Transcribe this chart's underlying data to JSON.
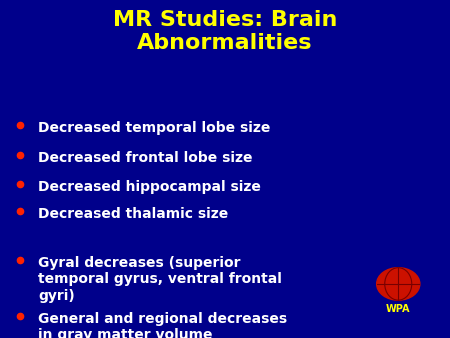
{
  "title_line1": "MR Studies: Brain",
  "title_line2": "Abnormalities",
  "title_color": "#FFFF00",
  "background_color": "#00008B",
  "bullet_color": "#FF2200",
  "text_color": "#FFFFFF",
  "bullet_items": [
    "Decreased temporal lobe size",
    "Decreased frontal lobe size",
    "Decreased hippocampal size",
    "Decreased thalamic size",
    "Gyral decreases (superior\ntemporal gyrus, ventral frontal\ngyri)",
    "General and regional decreases\nin gray matter volume"
  ],
  "wpa_text": "WPA",
  "wpa_text_color": "#FFFF00",
  "wpa_globe_color": "#CC1100",
  "title_fontsize": 16,
  "bullet_fontsize": 10,
  "figsize": [
    4.5,
    3.38
  ],
  "dpi": 100
}
